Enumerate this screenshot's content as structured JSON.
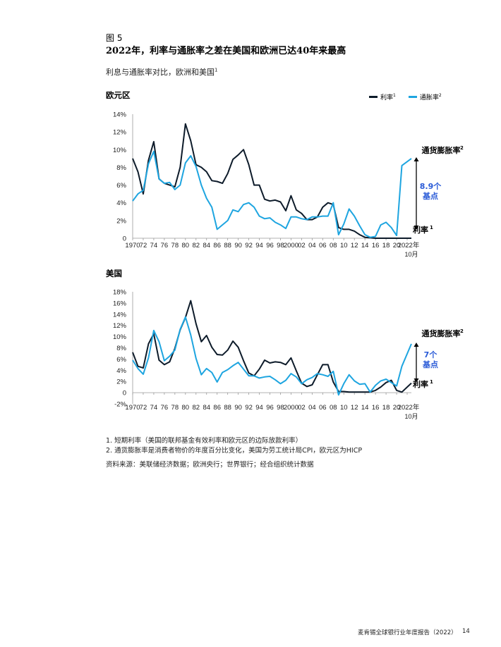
{
  "figure_label": "图 5",
  "title": "2022年，利率与通胀率之差在美国和欧洲已达40年来最高",
  "subtitle": "利息与通胀率对比，欧洲和美国",
  "subtitle_sup": "1",
  "legend": {
    "rate": "利率",
    "rate_sup": "1",
    "inflation": "通胀率",
    "inflation_sup": "2"
  },
  "colors": {
    "rate": "#0d1b2a",
    "inflation": "#1ea5e0",
    "annotation": "#2a5bd7"
  },
  "footnotes": [
    "1. 短期利率（美国的联邦基金有效利率和欧元区的边际放款利率）",
    "2. 通货膨胀率是消费者物价的年度百分比变化，美国为劳工统计局CPI，欧元区为HICP"
  ],
  "source": "资料来源：美联储经济数据；欧洲央行；世界银行；经合组织统计数据",
  "footer": {
    "text": "麦肯锡全球银行业年度报告（2022）",
    "page": "14"
  },
  "chart_data": [
    {
      "type": "line",
      "title": "欧元区",
      "ylim": [
        0,
        14
      ],
      "y_ticks": [
        "0",
        "2%",
        "4%",
        "6%",
        "8%",
        "10%",
        "12%",
        "14%"
      ],
      "x_tick_labels": [
        "1970",
        "72",
        "74",
        "76",
        "78",
        "80",
        "82",
        "84",
        "86",
        "88",
        "90",
        "92",
        "94",
        "96",
        "98",
        "2000",
        "02",
        "04",
        "06",
        "08",
        "10",
        "12",
        "14",
        "16",
        "18",
        "20",
        "2022年",
        "10月"
      ],
      "x": [
        1970,
        1971,
        1972,
        1973,
        1974,
        1975,
        1976,
        1977,
        1978,
        1979,
        1980,
        1981,
        1982,
        1983,
        1984,
        1985,
        1986,
        1987,
        1988,
        1989,
        1990,
        1991,
        1992,
        1993,
        1994,
        1995,
        1996,
        1997,
        1998,
        1999,
        2000,
        2001,
        2002,
        2003,
        2004,
        2005,
        2006,
        2007,
        2008,
        2009,
        2010,
        2011,
        2012,
        2013,
        2014,
        2015,
        2016,
        2017,
        2018,
        2019,
        2020,
        2021,
        2022.8
      ],
      "series": [
        {
          "name": "利率",
          "key": "rate",
          "values": [
            9.0,
            7.5,
            5.0,
            8.8,
            10.9,
            6.7,
            6.2,
            6.0,
            5.8,
            8.0,
            12.9,
            11.0,
            8.3,
            8.0,
            7.5,
            6.5,
            6.4,
            6.2,
            7.3,
            8.9,
            9.4,
            10.0,
            8.3,
            6.0,
            6.0,
            4.4,
            4.2,
            4.3,
            4.1,
            3.1,
            4.8,
            3.2,
            2.8,
            2.1,
            2.1,
            2.4,
            3.5,
            4.0,
            3.8,
            1.2,
            1.0,
            1.0,
            0.8,
            0.4,
            0.1,
            0.05,
            0.0,
            0.0,
            0.0,
            0.0,
            0.0,
            0.0,
            0.0
          ]
        },
        {
          "name": "通胀率",
          "key": "inflation",
          "values": [
            4.2,
            5.0,
            5.4,
            8.4,
            9.8,
            6.7,
            6.2,
            6.3,
            5.5,
            6.0,
            8.5,
            9.3,
            8.1,
            6.0,
            4.5,
            3.5,
            1.0,
            1.5,
            2.0,
            3.2,
            3.0,
            3.8,
            4.0,
            3.5,
            2.5,
            2.2,
            2.3,
            1.8,
            1.5,
            1.1,
            2.4,
            2.4,
            2.2,
            2.1,
            2.4,
            2.4,
            2.5,
            2.5,
            4.0,
            0.4,
            1.6,
            3.3,
            2.5,
            1.4,
            0.4,
            0.1,
            0.2,
            1.5,
            1.8,
            1.2,
            0.3,
            8.2,
            9.0
          ]
        }
      ],
      "annotations": {
        "inflation_label": "通货膨胀率",
        "inflation_sup": "2",
        "rate_label": "利率",
        "rate_sup": "1",
        "gap_line1": "8.9个",
        "gap_line2": "基点"
      }
    },
    {
      "type": "line",
      "title": "美国",
      "ylim": [
        -2,
        18
      ],
      "y_ticks": [
        "-2%",
        "0",
        "2%",
        "4%",
        "6%",
        "8%",
        "10%",
        "12%",
        "14%",
        "16%",
        "18%"
      ],
      "x_tick_labels": [
        "1970",
        "72",
        "74",
        "76",
        "78",
        "80",
        "82",
        "84",
        "86",
        "88",
        "90",
        "92",
        "94",
        "96",
        "98",
        "2000",
        "02",
        "04",
        "06",
        "08",
        "10",
        "12",
        "14",
        "16",
        "18",
        "20",
        "2022年",
        "10月"
      ],
      "x": [
        1970,
        1971,
        1972,
        1973,
        1974,
        1975,
        1976,
        1977,
        1978,
        1979,
        1980,
        1981,
        1982,
        1983,
        1984,
        1985,
        1986,
        1987,
        1988,
        1989,
        1990,
        1991,
        1992,
        1993,
        1994,
        1995,
        1996,
        1997,
        1998,
        1999,
        2000,
        2001,
        2002,
        2003,
        2004,
        2005,
        2006,
        2007,
        2008,
        2009,
        2010,
        2011,
        2012,
        2013,
        2014,
        2015,
        2016,
        2017,
        2018,
        2019,
        2020,
        2021,
        2022.8
      ],
      "series": [
        {
          "name": "利率",
          "key": "rate",
          "values": [
            7.2,
            4.7,
            4.4,
            8.7,
            10.5,
            5.8,
            5.0,
            5.5,
            7.9,
            11.2,
            13.4,
            16.4,
            12.3,
            9.1,
            10.2,
            8.1,
            6.8,
            6.7,
            7.6,
            9.2,
            8.1,
            5.7,
            3.5,
            3.0,
            4.2,
            5.8,
            5.3,
            5.5,
            5.4,
            5.0,
            6.2,
            3.9,
            1.7,
            1.1,
            1.4,
            3.2,
            5.0,
            5.0,
            1.9,
            0.2,
            0.2,
            0.1,
            0.1,
            0.1,
            0.1,
            0.1,
            0.4,
            1.0,
            1.8,
            2.2,
            0.4,
            0.1,
            1.7
          ]
        },
        {
          "name": "通胀率",
          "key": "inflation",
          "values": [
            5.8,
            4.3,
            3.3,
            6.2,
            11.1,
            9.1,
            5.7,
            6.5,
            7.6,
            11.3,
            13.5,
            10.3,
            6.1,
            3.2,
            4.3,
            3.6,
            1.9,
            3.6,
            4.1,
            4.8,
            5.4,
            4.2,
            3.0,
            3.0,
            2.6,
            2.8,
            2.9,
            2.3,
            1.6,
            2.2,
            3.4,
            2.8,
            1.6,
            2.3,
            2.7,
            3.4,
            3.2,
            2.9,
            3.8,
            -0.4,
            1.6,
            3.2,
            2.1,
            1.5,
            1.6,
            0.1,
            1.3,
            2.1,
            2.4,
            1.8,
            1.2,
            4.7,
            8.7
          ]
        }
      ],
      "annotations": {
        "inflation_label": "通货膨胀率",
        "inflation_sup": "2",
        "rate_label": "利率",
        "rate_sup": "1",
        "gap_line1": "7个",
        "gap_line2": "基点"
      }
    }
  ]
}
